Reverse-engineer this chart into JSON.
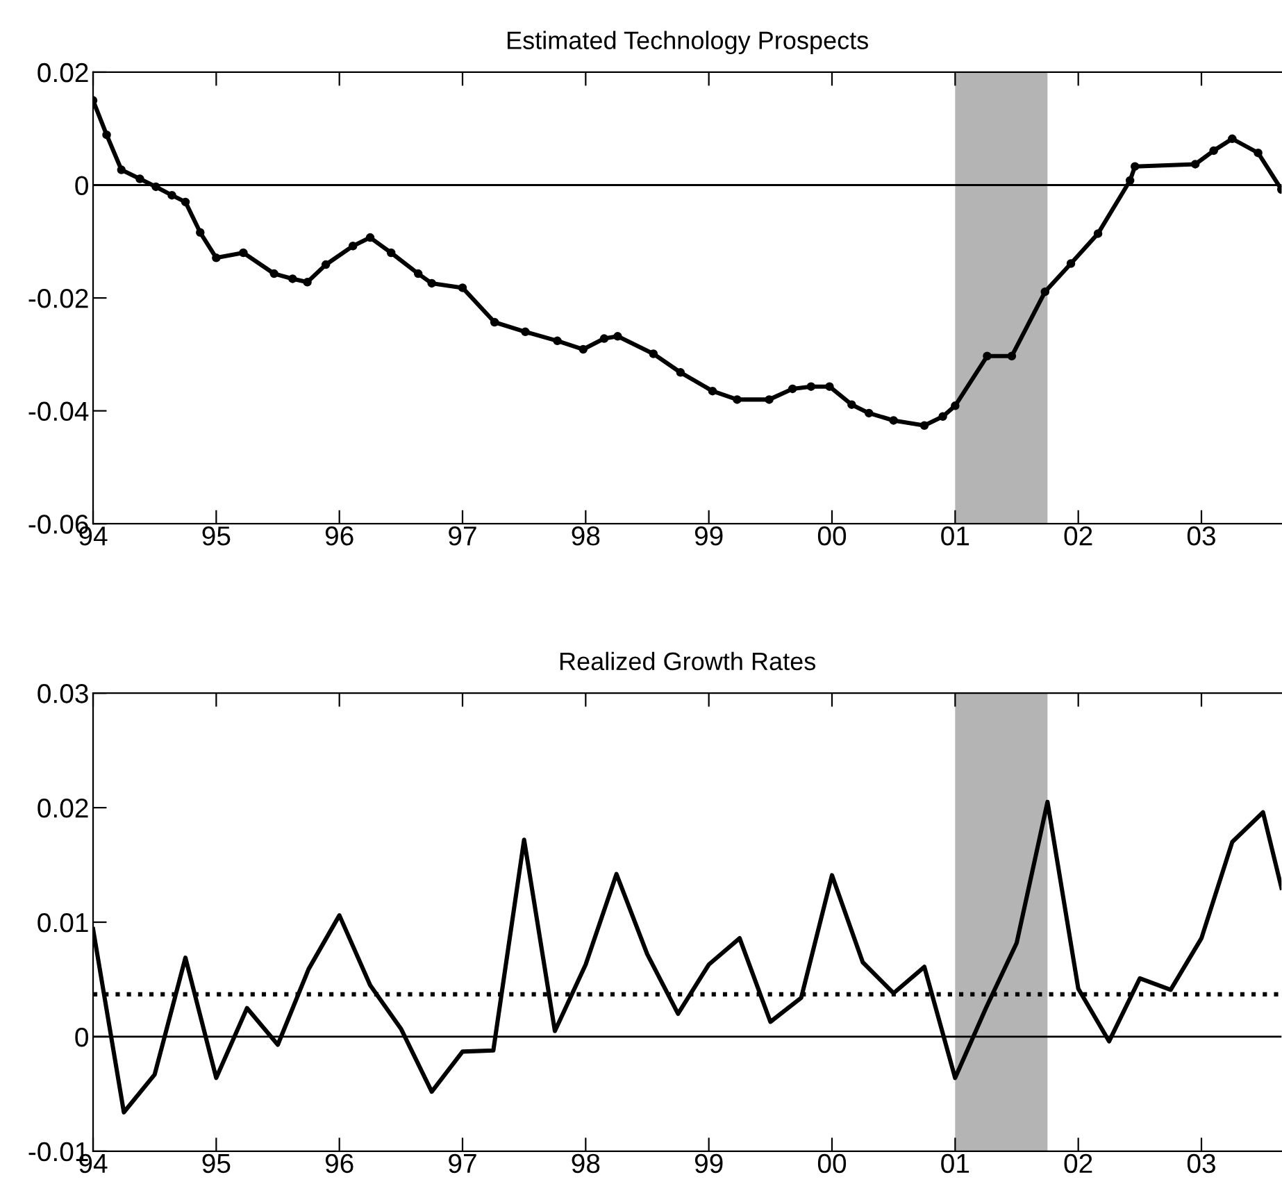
{
  "chart_data": [
    {
      "type": "line",
      "title": "Estimated Technology Prospects",
      "x": [
        1994.0,
        1994.11,
        1994.23,
        1994.38,
        1994.51,
        1994.64,
        1994.75,
        1994.87,
        1995.0,
        1995.22,
        1995.47,
        1995.62,
        1995.74,
        1995.89,
        1996.11,
        1996.25,
        1996.42,
        1996.64,
        1996.75,
        1997.0,
        1997.26,
        1997.51,
        1997.77,
        1997.98,
        1998.15,
        1998.26,
        1998.55,
        1998.77,
        1999.03,
        1999.23,
        1999.49,
        1999.68,
        1999.83,
        1999.98,
        2000.16,
        2000.3,
        2000.5,
        2000.75,
        2000.9,
        2001.0,
        2001.26,
        2001.46,
        2001.73,
        2001.94,
        2002.16,
        2002.42,
        2002.46,
        2002.95,
        2003.1,
        2003.25,
        2003.46,
        2003.65
      ],
      "series": [
        {
          "color": "#000000",
          "values": [
            0.015,
            0.0089,
            0.0027,
            0.0011,
            -0.0003,
            -0.0018,
            -0.003,
            -0.0084,
            -0.0129,
            -0.012,
            -0.0157,
            -0.0166,
            -0.0172,
            -0.0141,
            -0.0108,
            -0.0093,
            -0.012,
            -0.0157,
            -0.0174,
            -0.0182,
            -0.0243,
            -0.026,
            -0.0276,
            -0.0291,
            -0.0272,
            -0.0268,
            -0.0299,
            -0.0332,
            -0.0365,
            -0.038,
            -0.038,
            -0.0361,
            -0.0357,
            -0.0357,
            -0.0389,
            -0.0404,
            -0.0417,
            -0.0426,
            -0.041,
            -0.0391,
            -0.0303,
            -0.0303,
            -0.0189,
            -0.0139,
            -0.0086,
            0.0008,
            0.0033,
            0.0037,
            0.0061,
            0.0082,
            0.0057,
            -0.0008
          ]
        }
      ],
      "marker": "circle",
      "line_style": "solid",
      "grid": false,
      "xlim": [
        1994,
        2003.65
      ],
      "xticks": [
        {
          "value": 1994,
          "label": "94"
        },
        {
          "value": 1995,
          "label": "95"
        },
        {
          "value": 1996,
          "label": "96"
        },
        {
          "value": 1997,
          "label": "97"
        },
        {
          "value": 1998,
          "label": "98"
        },
        {
          "value": 1999,
          "label": "99"
        },
        {
          "value": 2000,
          "label": "00"
        },
        {
          "value": 2001,
          "label": "01"
        },
        {
          "value": 2002,
          "label": "02"
        },
        {
          "value": 2003,
          "label": "03"
        }
      ],
      "ylim": [
        -0.06,
        0.02
      ],
      "yticks": [
        -0.06,
        -0.04,
        -0.02,
        0,
        0.02
      ],
      "ref_lines": [
        {
          "axis": "y",
          "value": 0,
          "color": "#000000",
          "line_style": "solid"
        }
      ],
      "bands": [
        {
          "axis": "x",
          "from": 2001.0,
          "to": 2001.75,
          "color": "#b4b4b4"
        }
      ]
    },
    {
      "type": "line",
      "title": "Realized Growth Rates",
      "x": [
        1994.0,
        1994.25,
        1994.5,
        1994.75,
        1995.0,
        1995.25,
        1995.5,
        1995.75,
        1996.0,
        1996.25,
        1996.5,
        1996.75,
        1997.0,
        1997.25,
        1997.5,
        1997.75,
        1998.0,
        1998.25,
        1998.5,
        1998.75,
        1999.0,
        1999.25,
        1999.5,
        1999.75,
        2000.0,
        2000.25,
        2000.5,
        2000.75,
        2001.0,
        2001.25,
        2001.5,
        2001.75,
        2002.0,
        2002.25,
        2002.5,
        2002.75,
        2003.0,
        2003.25,
        2003.5,
        2003.65
      ],
      "series": [
        {
          "color": "#000000",
          "values": [
            0.0094,
            -0.0066,
            -0.0033,
            0.0069,
            -0.0036,
            0.0025,
            -0.0007,
            0.0059,
            0.0106,
            0.0045,
            0.0007,
            -0.0048,
            -0.0013,
            -0.0012,
            0.0172,
            0.0005,
            0.0063,
            0.0142,
            0.0072,
            0.002,
            0.0063,
            0.0086,
            0.0013,
            0.0034,
            0.0141,
            0.0065,
            0.0038,
            0.0061,
            -0.0036,
            0.0025,
            0.0082,
            0.0205,
            0.0042,
            -0.0004,
            0.0051,
            0.0041,
            0.0086,
            0.017,
            0.0196,
            0.013
          ]
        }
      ],
      "marker": "none",
      "line_style": "solid",
      "grid": false,
      "xlim": [
        1994,
        2003.65
      ],
      "xticks": [
        {
          "value": 1994,
          "label": "94"
        },
        {
          "value": 1995,
          "label": "95"
        },
        {
          "value": 1996,
          "label": "96"
        },
        {
          "value": 1997,
          "label": "97"
        },
        {
          "value": 1998,
          "label": "98"
        },
        {
          "value": 1999,
          "label": "99"
        },
        {
          "value": 2000,
          "label": "00"
        },
        {
          "value": 2001,
          "label": "01"
        },
        {
          "value": 2002,
          "label": "02"
        },
        {
          "value": 2003,
          "label": "03"
        }
      ],
      "ylim": [
        -0.01,
        0.03
      ],
      "yticks": [
        -0.01,
        0,
        0.01,
        0.02,
        0.03
      ],
      "ref_lines": [
        {
          "axis": "y",
          "value": 0,
          "color": "#000000",
          "line_style": "solid"
        },
        {
          "axis": "y",
          "value": 0.0037,
          "color": "#000000",
          "line_style": "dotted"
        }
      ],
      "bands": [
        {
          "axis": "x",
          "from": 2001.0,
          "to": 2001.75,
          "color": "#b4b4b4"
        }
      ]
    }
  ]
}
